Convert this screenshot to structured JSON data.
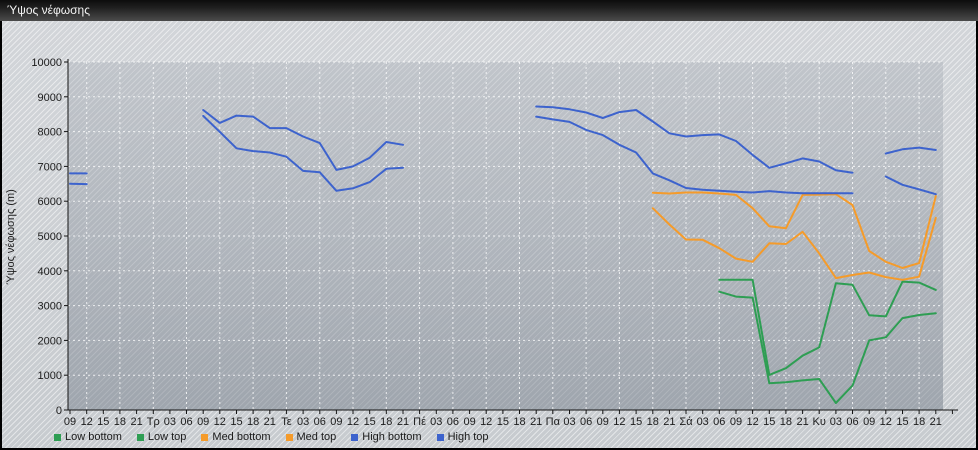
{
  "window": {
    "title": "Ύψος νέφωσης"
  },
  "legend": {
    "items": [
      {
        "label": "Low bottom",
        "color": "#2e9e53"
      },
      {
        "label": "Low top",
        "color": "#2e9e53"
      },
      {
        "label": "Med bottom",
        "color": "#f59b2a"
      },
      {
        "label": "Med top",
        "color": "#f59b2a"
      },
      {
        "label": "High bottom",
        "color": "#3d63cd"
      },
      {
        "label": "High top",
        "color": "#3d63cd"
      }
    ]
  },
  "chart_data": {
    "type": "line",
    "title": "Ύψος νέφωσης",
    "ylabel": "Ύψος νέφωσης (m)",
    "ylim": [
      0,
      10000
    ],
    "y_tick_labels": [
      "0",
      "1000",
      "2000",
      "3000",
      "4000",
      "5000",
      "6000",
      "7000",
      "8000",
      "9000",
      "10000"
    ],
    "x_tick_labels": [
      "09",
      "12",
      "15",
      "18",
      "21",
      "Τρ",
      "03",
      "06",
      "09",
      "12",
      "15",
      "18",
      "21",
      "Τε",
      "03",
      "06",
      "09",
      "12",
      "15",
      "18",
      "21",
      "Πέ",
      "03",
      "06",
      "09",
      "12",
      "15",
      "18",
      "21",
      "Πα",
      "03",
      "06",
      "09",
      "12",
      "15",
      "18",
      "21",
      "Σά",
      "03",
      "06",
      "09",
      "12",
      "15",
      "18",
      "21",
      "Κυ",
      "03",
      "06",
      "09",
      "12",
      "15",
      "18",
      "21"
    ],
    "grid": true,
    "legend_position": "bottom",
    "series": [
      {
        "name": "Low bottom",
        "color": "#2e9e53",
        "values": [
          null,
          null,
          null,
          null,
          null,
          null,
          null,
          null,
          null,
          null,
          null,
          null,
          null,
          null,
          null,
          null,
          null,
          null,
          null,
          null,
          null,
          null,
          null,
          null,
          null,
          null,
          null,
          null,
          null,
          null,
          null,
          null,
          null,
          null,
          null,
          null,
          null,
          null,
          null,
          3400,
          3260,
          3230,
          770,
          800,
          850,
          890,
          200,
          700,
          2000,
          2090,
          2640,
          2730,
          2780
        ]
      },
      {
        "name": "Low top",
        "color": "#2e9e53",
        "values": [
          null,
          null,
          null,
          null,
          null,
          null,
          null,
          null,
          null,
          null,
          null,
          null,
          null,
          null,
          null,
          null,
          null,
          null,
          null,
          null,
          null,
          null,
          null,
          null,
          null,
          null,
          null,
          null,
          null,
          null,
          null,
          null,
          null,
          null,
          null,
          null,
          null,
          null,
          null,
          3740,
          3740,
          3740,
          1010,
          1200,
          1560,
          1800,
          3640,
          3600,
          2720,
          2690,
          3690,
          3660,
          3450
        ]
      },
      {
        "name": "Med bottom",
        "color": "#f59b2a",
        "values": [
          null,
          null,
          null,
          null,
          null,
          null,
          null,
          null,
          null,
          null,
          null,
          null,
          null,
          null,
          null,
          null,
          null,
          null,
          null,
          null,
          null,
          null,
          null,
          null,
          null,
          null,
          null,
          null,
          null,
          null,
          null,
          null,
          null,
          null,
          null,
          5800,
          5330,
          4900,
          4890,
          4650,
          4350,
          4260,
          4790,
          4770,
          5120,
          4500,
          3790,
          3880,
          3950,
          3820,
          3740,
          3830,
          5520
        ]
      },
      {
        "name": "Med top",
        "color": "#f59b2a",
        "values": [
          null,
          null,
          null,
          null,
          null,
          null,
          null,
          null,
          null,
          null,
          null,
          null,
          null,
          null,
          null,
          null,
          null,
          null,
          null,
          null,
          null,
          null,
          null,
          null,
          null,
          null,
          null,
          null,
          null,
          null,
          null,
          null,
          null,
          null,
          null,
          6240,
          6220,
          6250,
          6250,
          6220,
          6180,
          5800,
          5280,
          5220,
          6180,
          6190,
          6200,
          5890,
          4570,
          4260,
          4080,
          4220,
          6150
        ]
      },
      {
        "name": "High bottom",
        "color": "#3d63cd",
        "values": [
          6500,
          6490,
          null,
          null,
          null,
          null,
          null,
          null,
          8450,
          7990,
          7520,
          7440,
          7400,
          7280,
          6870,
          6830,
          6300,
          6370,
          6550,
          6930,
          6960,
          null,
          null,
          null,
          null,
          null,
          null,
          null,
          8430,
          8350,
          8280,
          8050,
          7900,
          7620,
          7400,
          6800,
          6600,
          6380,
          6330,
          6300,
          6270,
          6250,
          6290,
          6250,
          6230,
          6230,
          6230,
          6230,
          null,
          6710,
          6470,
          6340,
          6200
        ]
      },
      {
        "name": "High top",
        "color": "#3d63cd",
        "values": [
          6800,
          6800,
          null,
          null,
          null,
          null,
          null,
          null,
          8620,
          8250,
          8460,
          8430,
          8100,
          8100,
          7860,
          7670,
          6900,
          7000,
          7250,
          7700,
          7620,
          null,
          null,
          null,
          null,
          null,
          null,
          null,
          8720,
          8700,
          8640,
          8550,
          8390,
          8560,
          8620,
          8290,
          7950,
          7860,
          7900,
          7920,
          7730,
          7330,
          6960,
          7090,
          7230,
          7140,
          6890,
          6820,
          null,
          7370,
          7490,
          7540,
          7470
        ]
      }
    ]
  }
}
